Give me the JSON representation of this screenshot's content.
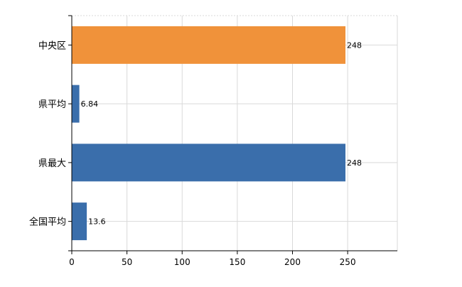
{
  "chart_data": {
    "type": "bar",
    "orientation": "horizontal",
    "categories": [
      "中央区",
      "県平均",
      "県最大",
      "全国平均"
    ],
    "values": [
      248,
      6.84,
      248,
      13.6
    ],
    "value_labels": [
      "248",
      "6.84",
      "248",
      "13.6"
    ],
    "highlight_category": "中央区",
    "xlim": [
      0,
      295
    ],
    "xticks": [
      0,
      50,
      100,
      150,
      200,
      250
    ],
    "xtick_labels": [
      "0",
      "50",
      "100",
      "150",
      "200",
      "250"
    ],
    "grid": true,
    "legend": "none",
    "title": "",
    "xlabel": "",
    "ylabel": ""
  },
  "colors": {
    "highlight": "#F0923A",
    "default": "#3A6EAB",
    "grid": "#D9D9D9",
    "axis": "#000000"
  }
}
